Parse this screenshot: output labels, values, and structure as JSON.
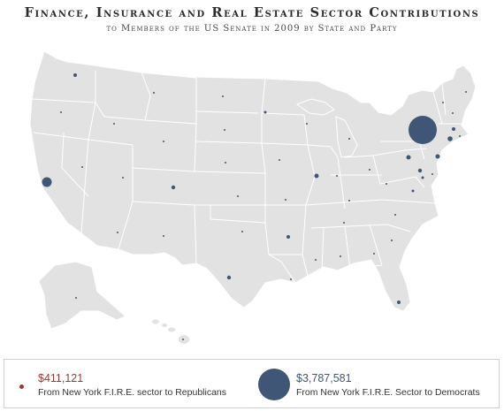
{
  "title": "Finance, Insurance and Real Estate Sector Contributions",
  "subtitle": "to Members of the US Senate in 2009 by State and Party",
  "colors": {
    "republican": "#9b3a2e",
    "democrat": "#3f5677",
    "land": "#e2e2e2",
    "border": "#ffffff"
  },
  "legend": {
    "republican": {
      "amount": "$411,121",
      "caption": "From New York F.I.R.E. sector to Republicans"
    },
    "democrat": {
      "amount": "$3,787,581",
      "caption": "From New York F.I.R.E. Sector to Democrats"
    }
  }
}
